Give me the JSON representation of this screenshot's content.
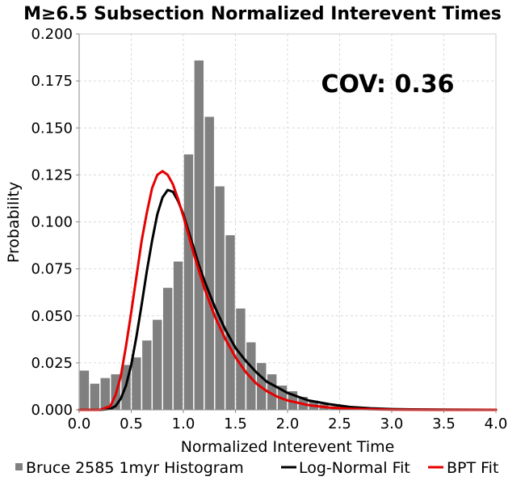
{
  "chart_data": {
    "type": "bar",
    "title": "M≥6.5 Subsection Normalized Interevent Times",
    "xlabel": "Normalized Interevent Time",
    "ylabel": "Probability",
    "xlim": [
      0.0,
      4.0
    ],
    "ylim": [
      0.0,
      0.2
    ],
    "xticks": [
      "0.0",
      "0.5",
      "1.0",
      "1.5",
      "2.0",
      "2.5",
      "3.0",
      "3.5",
      "4.0"
    ],
    "yticks": [
      "0.000",
      "0.025",
      "0.050",
      "0.075",
      "0.100",
      "0.125",
      "0.150",
      "0.175",
      "0.200"
    ],
    "grid": true,
    "annotation": "COV: 0.36",
    "histogram": {
      "name": "Bruce 2585 1myr Histogram",
      "color": "#808080",
      "bin_width": 0.1,
      "bin_centers": [
        0.05,
        0.15,
        0.25,
        0.35,
        0.45,
        0.55,
        0.65,
        0.75,
        0.85,
        0.95,
        1.05,
        1.15,
        1.25,
        1.35,
        1.45,
        1.55,
        1.65,
        1.75,
        1.85,
        1.95,
        2.05,
        2.15,
        2.25,
        2.35,
        2.45,
        2.55,
        2.65,
        2.75,
        2.85,
        2.95,
        3.05,
        3.15,
        3.25,
        3.35,
        3.45,
        3.55,
        3.65,
        3.75,
        3.85,
        3.95
      ],
      "values": [
        0.021,
        0.014,
        0.017,
        0.019,
        0.024,
        0.028,
        0.037,
        0.048,
        0.065,
        0.079,
        0.136,
        0.186,
        0.156,
        0.119,
        0.093,
        0.054,
        0.036,
        0.025,
        0.019,
        0.013,
        0.01,
        0.007,
        0.005,
        0.003,
        0.002,
        0.002,
        0.001,
        0.001,
        0.001,
        0.0,
        0.0,
        0.0,
        0.0,
        0.0,
        0.0,
        0.0,
        0.0,
        0.0,
        0.0,
        0.0
      ]
    },
    "series": [
      {
        "name": "Log-Normal Fit",
        "color": "#000000",
        "x": [
          0.0,
          0.2,
          0.3,
          0.35,
          0.4,
          0.45,
          0.5,
          0.55,
          0.6,
          0.65,
          0.7,
          0.75,
          0.8,
          0.85,
          0.9,
          0.95,
          1.0,
          1.05,
          1.1,
          1.15,
          1.2,
          1.3,
          1.4,
          1.5,
          1.6,
          1.7,
          1.8,
          1.9,
          2.0,
          2.2,
          2.4,
          2.6,
          2.8,
          3.0,
          3.2,
          3.5,
          4.0
        ],
        "y": [
          0.0,
          0.0,
          0.0005,
          0.002,
          0.006,
          0.013,
          0.024,
          0.039,
          0.056,
          0.074,
          0.09,
          0.104,
          0.113,
          0.117,
          0.116,
          0.111,
          0.104,
          0.095,
          0.086,
          0.077,
          0.069,
          0.055,
          0.043,
          0.033,
          0.026,
          0.02,
          0.015,
          0.012,
          0.009,
          0.005,
          0.003,
          0.0015,
          0.0008,
          0.0004,
          0.0002,
          0.0001,
          0.0
        ]
      },
      {
        "name": "BPT Fit",
        "color": "#e60000",
        "x": [
          0.0,
          0.2,
          0.3,
          0.35,
          0.4,
          0.45,
          0.5,
          0.55,
          0.6,
          0.65,
          0.7,
          0.75,
          0.8,
          0.85,
          0.9,
          0.95,
          1.0,
          1.05,
          1.1,
          1.15,
          1.2,
          1.3,
          1.4,
          1.5,
          1.6,
          1.7,
          1.8,
          1.9,
          2.0,
          2.2,
          2.4,
          2.6,
          2.8,
          3.0,
          3.2,
          3.5,
          4.0
        ],
        "y": [
          0.0,
          0.0,
          0.002,
          0.008,
          0.018,
          0.034,
          0.052,
          0.071,
          0.09,
          0.105,
          0.118,
          0.125,
          0.127,
          0.125,
          0.12,
          0.112,
          0.103,
          0.093,
          0.083,
          0.074,
          0.065,
          0.05,
          0.038,
          0.028,
          0.02,
          0.014,
          0.01,
          0.007,
          0.005,
          0.0025,
          0.0012,
          0.0006,
          0.0003,
          0.0001,
          5e-05,
          0.0,
          0.0
        ]
      }
    ],
    "legend": {
      "position": "bottom",
      "items": [
        {
          "label": "Bruce 2585 1myr Histogram",
          "marker": "square",
          "color": "#808080"
        },
        {
          "label": "Log-Normal Fit",
          "marker": "line",
          "color": "#000000"
        },
        {
          "label": "BPT Fit",
          "marker": "line",
          "color": "#e60000"
        }
      ]
    }
  }
}
